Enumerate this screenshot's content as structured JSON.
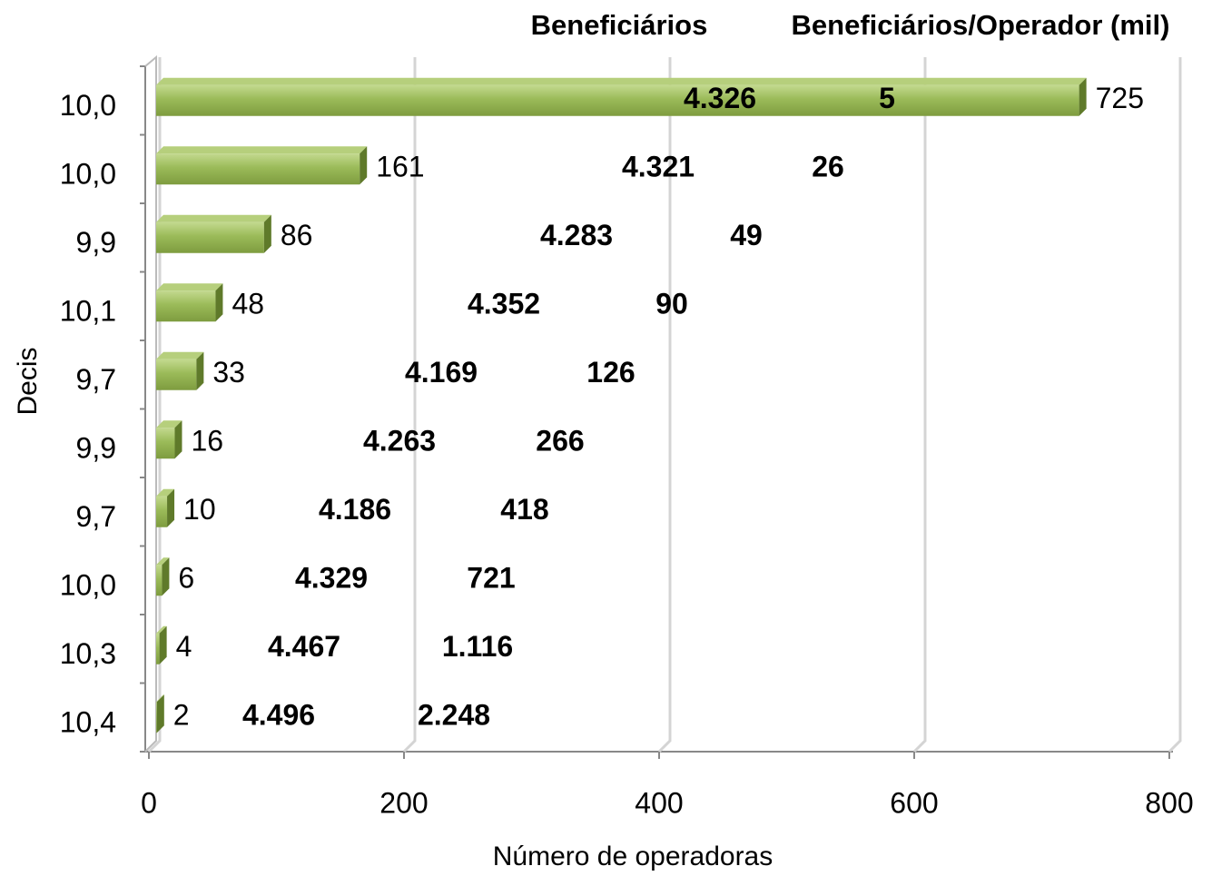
{
  "chart_data": {
    "type": "bar",
    "orientation": "horizontal",
    "x_label": "Número de operadoras",
    "y_label": "Decis",
    "categories": [
      "10,0",
      "10,0",
      "9,9",
      "10,1",
      "9,7",
      "9,9",
      "9,7",
      "10,0",
      "10,3",
      "10,4"
    ],
    "values": [
      725,
      161,
      86,
      48,
      33,
      16,
      10,
      6,
      4,
      2
    ],
    "color": "#9bbb59",
    "xlim": [
      0,
      800
    ],
    "xticks": [
      0,
      200,
      400,
      600,
      800
    ],
    "grid": true,
    "columns": [
      {
        "name": "Beneficiários",
        "values": [
          4326,
          4321,
          4283,
          4352,
          4169,
          4263,
          4186,
          4329,
          4467,
          4496
        ],
        "value_labels": [
          "4.326",
          "4.321",
          "4.283",
          "4.352",
          "4.169",
          "4.263",
          "4.186",
          "4.329",
          "4.467",
          "4.496"
        ]
      },
      {
        "name": "Beneficiários/Operador (mil)",
        "values": [
          5,
          26,
          49,
          90,
          126,
          266,
          418,
          721,
          1116,
          2248
        ],
        "value_labels": [
          "5",
          "26",
          "49",
          "90",
          "126",
          "266",
          "418",
          "721",
          "1.116",
          "2.248"
        ]
      }
    ]
  }
}
